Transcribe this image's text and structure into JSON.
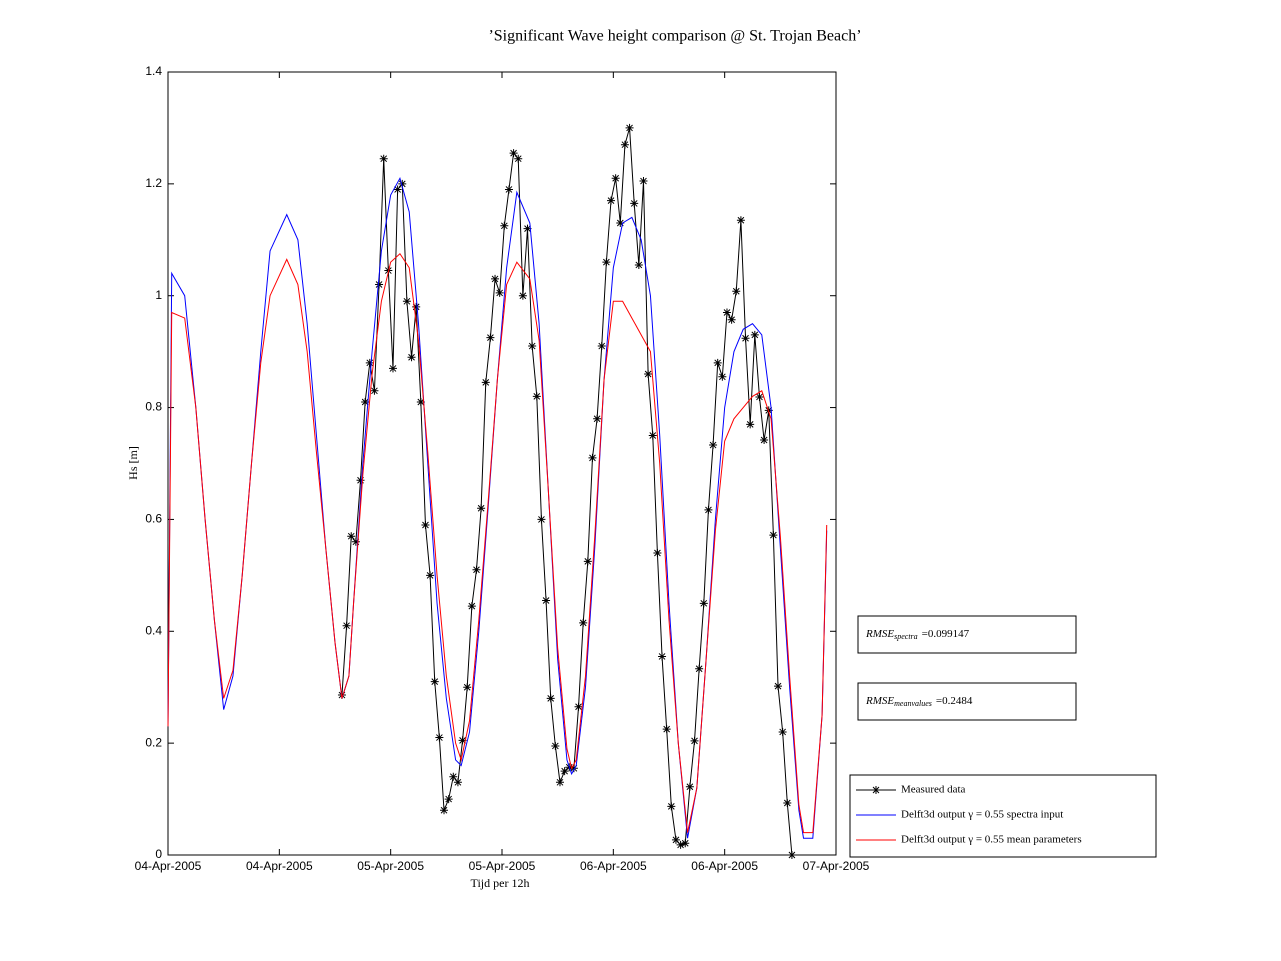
{
  "chart_data": {
    "type": "line",
    "title": "’Significant Wave height comparison @ St. Trojan Beach’",
    "xlabel": "Tijd per 12h",
    "ylabel": "Hs [m]",
    "xlim": [
      0,
      72
    ],
    "ylim": [
      0,
      1.4
    ],
    "xticks": [
      {
        "value": 0,
        "label": "04-Apr-2005"
      },
      {
        "value": 12,
        "label": "04-Apr-2005"
      },
      {
        "value": 24,
        "label": "05-Apr-2005"
      },
      {
        "value": 36,
        "label": "05-Apr-2005"
      },
      {
        "value": 48,
        "label": "06-Apr-2005"
      },
      {
        "value": 60,
        "label": "06-Apr-2005"
      },
      {
        "value": 72,
        "label": "07-Apr-2005"
      }
    ],
    "yticks": [
      0,
      0.2,
      0.4,
      0.6,
      0.8,
      1,
      1.2,
      1.4
    ],
    "grid": false,
    "legend": "lower right",
    "series": [
      {
        "name": "Measured data",
        "color": "#000000",
        "marker": "star",
        "x": [
          18.75,
          19.25,
          19.75,
          20.25,
          20.75,
          21.25,
          21.75,
          22.25,
          22.75,
          23.25,
          23.75,
          24.25,
          24.75,
          25.25,
          25.75,
          26.25,
          26.75,
          27.25,
          27.75,
          28.25,
          28.75,
          29.25,
          29.75,
          30.25,
          30.75,
          31.25,
          31.75,
          32.25,
          32.75,
          33.25,
          33.75,
          34.25,
          34.75,
          35.25,
          35.75,
          36.25,
          36.75,
          37.25,
          37.75,
          38.25,
          38.75,
          39.25,
          39.75,
          40.25,
          40.75,
          41.25,
          41.75,
          42.25,
          42.75,
          43.25,
          43.75,
          44.25,
          44.75,
          45.25,
          45.75,
          46.25,
          46.75,
          47.25,
          47.75,
          48.25,
          48.75,
          49.25,
          49.75,
          50.25,
          50.75,
          51.25,
          51.75,
          52.25,
          52.75,
          53.25,
          53.75,
          54.25,
          54.75,
          55.25,
          55.75,
          56.25,
          56.75,
          57.25,
          57.75,
          58.25,
          58.75,
          59.25,
          59.75,
          60.25,
          60.75,
          61.25,
          61.75,
          62.25,
          62.75,
          63.25,
          63.75,
          64.25,
          64.75,
          65.25,
          65.75,
          66.25,
          66.75,
          67.25
        ],
        "values": [
          0.286,
          0.41,
          0.57,
          0.56,
          0.67,
          0.81,
          0.88,
          0.83,
          1.02,
          1.245,
          1.045,
          0.87,
          1.19,
          1.2,
          0.99,
          0.89,
          0.98,
          0.81,
          0.59,
          0.5,
          0.31,
          0.21,
          0.08,
          0.1,
          0.14,
          0.13,
          0.205,
          0.3,
          0.445,
          0.51,
          0.62,
          0.845,
          0.925,
          1.03,
          1.005,
          1.125,
          1.19,
          1.255,
          1.245,
          1.0,
          1.12,
          0.91,
          0.82,
          0.6,
          0.455,
          0.28,
          0.195,
          0.13,
          0.15,
          0.157,
          0.155,
          0.265,
          0.415,
          0.525,
          0.71,
          0.78,
          0.91,
          1.06,
          1.17,
          1.21,
          1.13,
          1.27,
          1.3,
          1.165,
          1.055,
          1.205,
          0.86,
          0.75,
          0.54,
          0.355,
          0.225,
          0.087,
          0.027,
          0.018,
          0.021,
          0.122,
          0.204,
          0.333,
          0.45,
          0.617,
          0.733,
          0.88,
          0.855,
          0.97,
          0.957,
          1.008,
          1.135,
          0.924,
          0.77,
          0.93,
          0.819,
          0.742,
          0.795,
          0.572,
          0.302,
          0.22,
          0.093,
          0.0
        ]
      },
      {
        "name": "Delft3d output γ = 0.55 spectra input",
        "color": "#0000ff",
        "x": [
          0,
          0.4,
          1.8,
          3,
          4,
          5,
          6,
          7,
          8,
          9,
          10,
          11,
          12.8,
          14,
          15,
          16,
          17,
          18,
          18.75,
          19.5,
          20,
          21,
          22,
          23,
          24,
          25,
          26,
          27,
          28,
          29,
          30,
          31,
          31.6,
          32.5,
          33.5,
          34.5,
          35.5,
          36.5,
          37.6,
          39,
          40,
          41,
          42,
          43,
          43.5,
          44,
          45,
          46,
          47,
          48,
          49,
          50,
          51,
          52,
          53,
          54,
          55,
          56,
          57,
          58,
          59,
          60,
          61,
          62,
          63,
          64,
          65,
          66,
          67,
          68,
          68.5,
          69.5,
          70.5,
          71
        ],
        "values": [
          0.23,
          1.04,
          1.0,
          0.8,
          0.6,
          0.42,
          0.26,
          0.32,
          0.5,
          0.7,
          0.9,
          1.08,
          1.145,
          1.1,
          0.95,
          0.75,
          0.55,
          0.38,
          0.28,
          0.32,
          0.45,
          0.7,
          0.9,
          1.08,
          1.18,
          1.21,
          1.15,
          0.95,
          0.7,
          0.45,
          0.28,
          0.17,
          0.16,
          0.22,
          0.4,
          0.62,
          0.85,
          1.05,
          1.185,
          1.13,
          0.95,
          0.65,
          0.35,
          0.17,
          0.145,
          0.16,
          0.3,
          0.55,
          0.85,
          1.05,
          1.13,
          1.14,
          1.1,
          1.0,
          0.75,
          0.45,
          0.2,
          0.03,
          0.12,
          0.35,
          0.6,
          0.8,
          0.9,
          0.94,
          0.95,
          0.93,
          0.8,
          0.55,
          0.3,
          0.08,
          0.03,
          0.03,
          0.25,
          0.58
        ]
      },
      {
        "name": "Delft3d output γ = 0.55 mean parameters",
        "color": "#ff0000",
        "x": [
          0,
          0.4,
          1.8,
          3,
          4,
          5,
          6,
          7,
          8,
          9,
          10,
          11,
          12.8,
          14,
          15,
          16,
          17,
          18,
          18.75,
          19.5,
          20,
          21,
          22,
          23,
          24,
          25,
          26,
          27,
          28,
          29,
          30,
          31,
          31.6,
          32.5,
          33.5,
          34.5,
          35.5,
          36.5,
          37.6,
          39,
          40,
          41,
          42,
          43,
          43.5,
          44,
          45,
          46,
          47,
          48,
          49,
          50,
          51,
          52,
          53,
          54,
          55,
          56,
          57,
          58,
          59,
          60,
          61,
          62,
          63,
          64,
          65,
          66,
          67,
          68,
          68.5,
          69.5,
          70.5,
          71
        ],
        "values": [
          0.23,
          0.97,
          0.96,
          0.8,
          0.6,
          0.42,
          0.28,
          0.33,
          0.5,
          0.7,
          0.88,
          1.0,
          1.065,
          1.02,
          0.9,
          0.72,
          0.55,
          0.38,
          0.28,
          0.32,
          0.45,
          0.68,
          0.86,
          0.99,
          1.06,
          1.075,
          1.05,
          0.92,
          0.72,
          0.5,
          0.32,
          0.2,
          0.17,
          0.24,
          0.42,
          0.63,
          0.85,
          1.02,
          1.06,
          1.03,
          0.92,
          0.65,
          0.37,
          0.19,
          0.155,
          0.17,
          0.32,
          0.57,
          0.85,
          0.99,
          0.99,
          0.96,
          0.93,
          0.9,
          0.7,
          0.42,
          0.2,
          0.04,
          0.12,
          0.35,
          0.58,
          0.74,
          0.78,
          0.8,
          0.82,
          0.83,
          0.78,
          0.57,
          0.32,
          0.09,
          0.04,
          0.04,
          0.25,
          0.59
        ]
      }
    ],
    "annotations": [
      {
        "text": "RMSE",
        "subscript": "spectra",
        "value": "=0.099147"
      },
      {
        "text": "RMSE",
        "subscript": "meanvalues",
        "value": "=0.2484"
      }
    ]
  }
}
